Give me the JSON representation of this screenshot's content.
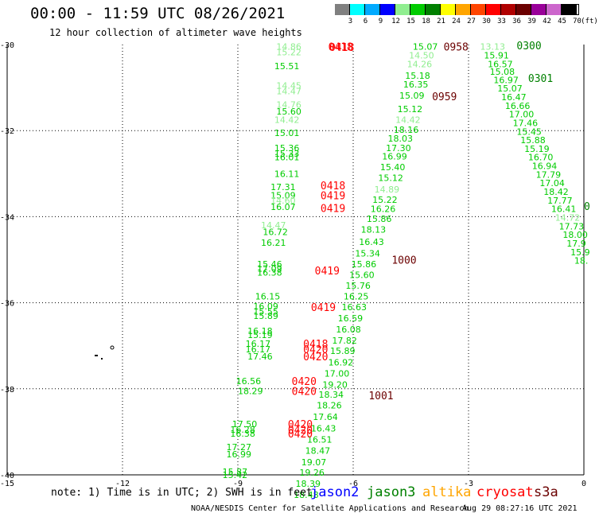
{
  "header": {
    "title": "00:00 - 11:59 UTC 08/26/2021",
    "subtitle": "12 hour collection of altimeter wave heights"
  },
  "color_scale": {
    "unit_label": "(ft)",
    "bins": [
      {
        "label": "3",
        "color": "#808080"
      },
      {
        "label": "6",
        "color": "#00ffff"
      },
      {
        "label": "9",
        "color": "#00aaff"
      },
      {
        "label": "12",
        "color": "#0000ff"
      },
      {
        "label": "15",
        "color": "#90ee90"
      },
      {
        "label": "18",
        "color": "#00cc00"
      },
      {
        "label": "21",
        "color": "#008000"
      },
      {
        "label": "24",
        "color": "#ffff00"
      },
      {
        "label": "27",
        "color": "#ffa500"
      },
      {
        "label": "30",
        "color": "#ff4500"
      },
      {
        "label": "33",
        "color": "#ff0000"
      },
      {
        "label": "36",
        "color": "#b00000"
      },
      {
        "label": "39",
        "color": "#6b0000"
      },
      {
        "label": "42",
        "color": "#990099"
      },
      {
        "label": "45",
        "color": "#cc66cc"
      },
      {
        "label": "70",
        "color": "#000000"
      }
    ]
  },
  "map": {
    "lon_ticks": [
      "-15",
      "-12",
      "-9",
      "-6",
      "-3",
      "0"
    ],
    "lat_ticks": [
      "-30",
      "-32",
      "-34",
      "-36",
      "-38",
      "-40"
    ],
    "lon_range": [
      -15,
      0
    ],
    "lat_range": [
      -40,
      -30
    ],
    "wave_heights": [
      {
        "lon": -8.0,
        "lat": -30.05,
        "v": "14.86",
        "c": "#90ee90"
      },
      {
        "lon": -8.0,
        "lat": -30.18,
        "v": "15.22",
        "c": "#90ee90"
      },
      {
        "lon": -8.05,
        "lat": -30.5,
        "v": "15.51",
        "c": "#00cc00"
      },
      {
        "lon": -8.0,
        "lat": -30.95,
        "v": "14.45",
        "c": "#90ee90"
      },
      {
        "lon": -8.0,
        "lat": -31.08,
        "v": "14.47",
        "c": "#90ee90"
      },
      {
        "lon": -8.0,
        "lat": -31.4,
        "v": "14.76",
        "c": "#90ee90"
      },
      {
        "lon": -8.0,
        "lat": -31.55,
        "v": "15.60",
        "c": "#00cc00"
      },
      {
        "lon": -8.05,
        "lat": -31.75,
        "v": "14.42",
        "c": "#90ee90"
      },
      {
        "lon": -8.05,
        "lat": -32.05,
        "v": "15.01",
        "c": "#00cc00"
      },
      {
        "lon": -8.05,
        "lat": -32.4,
        "v": "15.36",
        "c": "#00cc00"
      },
      {
        "lon": -8.05,
        "lat": -32.53,
        "v": "15.33",
        "c": "#00cc00"
      },
      {
        "lon": -8.05,
        "lat": -32.62,
        "v": "16.01",
        "c": "#00cc00"
      },
      {
        "lon": -8.05,
        "lat": -33.0,
        "v": "16.11",
        "c": "#00cc00"
      },
      {
        "lon": -8.15,
        "lat": -33.31,
        "v": "17.31",
        "c": "#00cc00"
      },
      {
        "lon": -8.15,
        "lat": -33.5,
        "v": "15.09",
        "c": "#00cc00"
      },
      {
        "lon": -8.15,
        "lat": -33.62,
        "v": "14.60",
        "c": "#90ee90"
      },
      {
        "lon": -8.15,
        "lat": -33.77,
        "v": "16.07",
        "c": "#00cc00"
      },
      {
        "lon": -8.4,
        "lat": -34.2,
        "v": "14.47",
        "c": "#90ee90"
      },
      {
        "lon": -8.35,
        "lat": -34.35,
        "v": "16.72",
        "c": "#00cc00"
      },
      {
        "lon": -8.4,
        "lat": -34.6,
        "v": "16.21",
        "c": "#00cc00"
      },
      {
        "lon": -8.5,
        "lat": -35.1,
        "v": "15.46",
        "c": "#00cc00"
      },
      {
        "lon": -8.5,
        "lat": -35.2,
        "v": "17.09",
        "c": "#00cc00"
      },
      {
        "lon": -8.5,
        "lat": -35.3,
        "v": "16.38",
        "c": "#00cc00"
      },
      {
        "lon": -8.55,
        "lat": -35.85,
        "v": "16.15",
        "c": "#00cc00"
      },
      {
        "lon": -8.6,
        "lat": -36.08,
        "v": "16.09",
        "c": "#00cc00"
      },
      {
        "lon": -8.6,
        "lat": -36.2,
        "v": "15.55",
        "c": "#00cc00"
      },
      {
        "lon": -8.6,
        "lat": -36.3,
        "v": "15.89",
        "c": "#00cc00"
      },
      {
        "lon": -8.75,
        "lat": -36.65,
        "v": "16.18",
        "c": "#00cc00"
      },
      {
        "lon": -8.75,
        "lat": -36.75,
        "v": "15.19",
        "c": "#00cc00"
      },
      {
        "lon": -8.8,
        "lat": -36.95,
        "v": "16.17",
        "c": "#00cc00"
      },
      {
        "lon": -8.8,
        "lat": -37.08,
        "v": "16.17",
        "c": "#00cc00"
      },
      {
        "lon": -8.75,
        "lat": -37.25,
        "v": "17.46",
        "c": "#00cc00"
      },
      {
        "lon": -9.05,
        "lat": -37.82,
        "v": "16.56",
        "c": "#00cc00"
      },
      {
        "lon": -9.0,
        "lat": -38.05,
        "v": "18.29",
        "c": "#00cc00"
      },
      {
        "lon": -9.15,
        "lat": -38.82,
        "v": "17.50",
        "c": "#00cc00"
      },
      {
        "lon": -9.2,
        "lat": -38.95,
        "v": "16.28",
        "c": "#00cc00"
      },
      {
        "lon": -9.2,
        "lat": -39.04,
        "v": "16.38",
        "c": "#00cc00"
      },
      {
        "lon": -9.3,
        "lat": -39.35,
        "v": "17.27",
        "c": "#00cc00"
      },
      {
        "lon": -9.3,
        "lat": -39.52,
        "v": "16.99",
        "c": "#00cc00"
      },
      {
        "lon": -9.4,
        "lat": -39.93,
        "v": "15.87",
        "c": "#00cc00"
      },
      {
        "lon": -9.4,
        "lat": -40.0,
        "v": "15.42",
        "c": "#00cc00"
      },
      {
        "lon": -4.45,
        "lat": -30.05,
        "v": "15.07",
        "c": "#00cc00"
      },
      {
        "lon": -4.55,
        "lat": -30.25,
        "v": "14.50",
        "c": "#90ee90"
      },
      {
        "lon": -4.6,
        "lat": -30.45,
        "v": "14.26",
        "c": "#90ee90"
      },
      {
        "lon": -4.65,
        "lat": -30.72,
        "v": "15.18",
        "c": "#00cc00"
      },
      {
        "lon": -4.7,
        "lat": -30.92,
        "v": "16.35",
        "c": "#00cc00"
      },
      {
        "lon": -4.8,
        "lat": -31.18,
        "v": "15.09",
        "c": "#00cc00"
      },
      {
        "lon": -4.85,
        "lat": -31.5,
        "v": "15.12",
        "c": "#00cc00"
      },
      {
        "lon": -4.9,
        "lat": -31.75,
        "v": "14.42",
        "c": "#90ee90"
      },
      {
        "lon": -4.95,
        "lat": -31.98,
        "v": "18.16",
        "c": "#00cc00"
      },
      {
        "lon": -5.1,
        "lat": -32.18,
        "v": "18.03",
        "c": "#00cc00"
      },
      {
        "lon": -5.15,
        "lat": -32.4,
        "v": "17.30",
        "c": "#00cc00"
      },
      {
        "lon": -5.25,
        "lat": -32.6,
        "v": "16.99",
        "c": "#00cc00"
      },
      {
        "lon": -5.3,
        "lat": -32.85,
        "v": "15.40",
        "c": "#00cc00"
      },
      {
        "lon": -5.35,
        "lat": -33.1,
        "v": "15.12",
        "c": "#00cc00"
      },
      {
        "lon": -5.45,
        "lat": -33.36,
        "v": "14.89",
        "c": "#90ee90"
      },
      {
        "lon": -5.5,
        "lat": -33.6,
        "v": "15.22",
        "c": "#00cc00"
      },
      {
        "lon": -5.55,
        "lat": -33.82,
        "v": "16.26",
        "c": "#00cc00"
      },
      {
        "lon": -5.65,
        "lat": -34.05,
        "v": "15.86",
        "c": "#00cc00"
      },
      {
        "lon": -5.8,
        "lat": -34.3,
        "v": "18.13",
        "c": "#00cc00"
      },
      {
        "lon": -5.85,
        "lat": -34.58,
        "v": "16.43",
        "c": "#00cc00"
      },
      {
        "lon": -5.95,
        "lat": -34.85,
        "v": "15.34",
        "c": "#00cc00"
      },
      {
        "lon": -6.05,
        "lat": -35.1,
        "v": "15.86",
        "c": "#00cc00"
      },
      {
        "lon": -6.1,
        "lat": -35.35,
        "v": "15.60",
        "c": "#00cc00"
      },
      {
        "lon": -6.2,
        "lat": -35.6,
        "v": "15.76",
        "c": "#00cc00"
      },
      {
        "lon": -6.25,
        "lat": -35.85,
        "v": "16.25",
        "c": "#00cc00"
      },
      {
        "lon": -6.3,
        "lat": -36.1,
        "v": "16.63",
        "c": "#00cc00"
      },
      {
        "lon": -6.4,
        "lat": -36.36,
        "v": "16.59",
        "c": "#00cc00"
      },
      {
        "lon": -6.45,
        "lat": -36.62,
        "v": "16.08",
        "c": "#00cc00"
      },
      {
        "lon": -6.55,
        "lat": -36.88,
        "v": "17.82",
        "c": "#00cc00"
      },
      {
        "lon": -6.6,
        "lat": -37.12,
        "v": "15.89",
        "c": "#00cc00"
      },
      {
        "lon": -6.65,
        "lat": -37.38,
        "v": "16.92",
        "c": "#00cc00"
      },
      {
        "lon": -6.75,
        "lat": -37.64,
        "v": "17.00",
        "c": "#00cc00"
      },
      {
        "lon": -6.8,
        "lat": -37.9,
        "v": "19.20",
        "c": "#00cc00"
      },
      {
        "lon": -6.9,
        "lat": -38.13,
        "v": "18.34",
        "c": "#00cc00"
      },
      {
        "lon": -6.95,
        "lat": -38.38,
        "v": "18.26",
        "c": "#00cc00"
      },
      {
        "lon": -7.05,
        "lat": -38.65,
        "v": "17.64",
        "c": "#00cc00"
      },
      {
        "lon": -7.1,
        "lat": -38.92,
        "v": "16.43",
        "c": "#00cc00"
      },
      {
        "lon": -7.2,
        "lat": -39.18,
        "v": "16.51",
        "c": "#00cc00"
      },
      {
        "lon": -7.25,
        "lat": -39.44,
        "v": "18.47",
        "c": "#00cc00"
      },
      {
        "lon": -7.35,
        "lat": -39.7,
        "v": "19.07",
        "c": "#00cc00"
      },
      {
        "lon": -7.4,
        "lat": -39.94,
        "v": "19.26",
        "c": "#00cc00"
      },
      {
        "lon": -7.5,
        "lat": -40.2,
        "v": "18.39",
        "c": "#00cc00"
      },
      {
        "lon": -7.55,
        "lat": -40.46,
        "v": "18.48",
        "c": "#00cc00"
      },
      {
        "lon": -2.7,
        "lat": -30.05,
        "v": "13.13",
        "c": "#90ee90"
      },
      {
        "lon": -2.6,
        "lat": -30.25,
        "v": "15.91",
        "c": "#00cc00"
      },
      {
        "lon": -2.5,
        "lat": -30.45,
        "v": "16.57",
        "c": "#00cc00"
      },
      {
        "lon": -2.45,
        "lat": -30.63,
        "v": "15.08",
        "c": "#00cc00"
      },
      {
        "lon": -2.35,
        "lat": -30.82,
        "v": "16.97",
        "c": "#00cc00"
      },
      {
        "lon": -2.25,
        "lat": -31.02,
        "v": "15.07",
        "c": "#00cc00"
      },
      {
        "lon": -2.15,
        "lat": -31.22,
        "v": "16.47",
        "c": "#00cc00"
      },
      {
        "lon": -2.05,
        "lat": -31.42,
        "v": "16.66",
        "c": "#00cc00"
      },
      {
        "lon": -1.95,
        "lat": -31.62,
        "v": "17.00",
        "c": "#00cc00"
      },
      {
        "lon": -1.85,
        "lat": -31.82,
        "v": "17.46",
        "c": "#00cc00"
      },
      {
        "lon": -1.75,
        "lat": -32.02,
        "v": "15.45",
        "c": "#00cc00"
      },
      {
        "lon": -1.65,
        "lat": -32.22,
        "v": "15.88",
        "c": "#00cc00"
      },
      {
        "lon": -1.55,
        "lat": -32.42,
        "v": "15.19",
        "c": "#00cc00"
      },
      {
        "lon": -1.45,
        "lat": -32.62,
        "v": "16.70",
        "c": "#00cc00"
      },
      {
        "lon": -1.35,
        "lat": -32.82,
        "v": "16.94",
        "c": "#00cc00"
      },
      {
        "lon": -1.25,
        "lat": -33.02,
        "v": "17.79",
        "c": "#00cc00"
      },
      {
        "lon": -1.15,
        "lat": -33.22,
        "v": "17.04",
        "c": "#00cc00"
      },
      {
        "lon": -1.05,
        "lat": -33.42,
        "v": "18.42",
        "c": "#00cc00"
      },
      {
        "lon": -0.95,
        "lat": -33.62,
        "v": "17.77",
        "c": "#00cc00"
      },
      {
        "lon": -0.85,
        "lat": -33.82,
        "v": "16.41",
        "c": "#00cc00"
      },
      {
        "lon": -0.75,
        "lat": -34.02,
        "v": "14.72",
        "c": "#90ee90"
      },
      {
        "lon": -0.65,
        "lat": -34.22,
        "v": "17.73",
        "c": "#00cc00"
      },
      {
        "lon": -0.55,
        "lat": -34.42,
        "v": "18.00",
        "c": "#00cc00"
      },
      {
        "lon": -0.45,
        "lat": -34.62,
        "v": "17.9",
        "c": "#00cc00"
      },
      {
        "lon": -0.35,
        "lat": -34.82,
        "v": "15.9",
        "c": "#00cc00"
      },
      {
        "lon": -0.25,
        "lat": -35.02,
        "v": "18.",
        "c": "#00cc00"
      }
    ],
    "time_tags": [
      {
        "lon": -6.65,
        "lat": -30.05,
        "t": "0418",
        "c": "#ff0000"
      },
      {
        "lon": -6.62,
        "lat": -30.06,
        "t": "0418",
        "c": "#ff0000"
      },
      {
        "lon": -6.85,
        "lat": -33.27,
        "t": "0418",
        "c": "#ff0000"
      },
      {
        "lon": -6.85,
        "lat": -33.5,
        "t": "0419",
        "c": "#ff0000"
      },
      {
        "lon": -6.85,
        "lat": -33.8,
        "t": "0419",
        "c": "#ff0000"
      },
      {
        "lon": -7.0,
        "lat": -35.25,
        "t": "0419",
        "c": "#ff0000"
      },
      {
        "lon": -7.1,
        "lat": -36.1,
        "t": "0419",
        "c": "#ff0000"
      },
      {
        "lon": -7.3,
        "lat": -36.95,
        "t": "0418",
        "c": "#ff0000"
      },
      {
        "lon": -7.3,
        "lat": -37.08,
        "t": "0420",
        "c": "#ff0000"
      },
      {
        "lon": -7.3,
        "lat": -37.25,
        "t": "0420",
        "c": "#ff0000"
      },
      {
        "lon": -7.6,
        "lat": -37.82,
        "t": "0420",
        "c": "#ff0000"
      },
      {
        "lon": -7.6,
        "lat": -38.05,
        "t": "0420",
        "c": "#ff0000"
      },
      {
        "lon": -7.7,
        "lat": -38.82,
        "t": "0420",
        "c": "#ff0000"
      },
      {
        "lon": -7.7,
        "lat": -38.95,
        "t": "0420",
        "c": "#ff0000"
      },
      {
        "lon": -7.7,
        "lat": -39.04,
        "t": "0420",
        "c": "#ff0000"
      },
      {
        "lon": -3.65,
        "lat": -30.05,
        "t": "0958",
        "c": "#6b0000"
      },
      {
        "lon": -3.95,
        "lat": -31.2,
        "t": "0959",
        "c": "#6b0000"
      },
      {
        "lon": -5.0,
        "lat": -35.0,
        "t": "1000",
        "c": "#6b0000"
      },
      {
        "lon": -5.6,
        "lat": -38.15,
        "t": "1001",
        "c": "#6b0000"
      },
      {
        "lon": -1.75,
        "lat": -30.02,
        "t": "0300",
        "c": "#008000"
      },
      {
        "lon": -1.45,
        "lat": -30.78,
        "t": "0301",
        "c": "#008000"
      },
      {
        "lon": 0.0,
        "lat": -33.75,
        "t": "0",
        "c": "#008000"
      }
    ]
  },
  "footer": {
    "note": "note: 1) Time is in UTC; 2) SWH is in feet",
    "satellites": [
      {
        "name": "jason2",
        "color": "#0000ff"
      },
      {
        "name": "jason3",
        "color": "#008000"
      },
      {
        "name": "altika",
        "color": "#ffa500"
      },
      {
        "name": "cryosat",
        "color": "#ff0000"
      },
      {
        "name": "s3a",
        "color": "#6b0000"
      }
    ],
    "credit": "NOAA/NESDIS Center for Satellite Applications and Research",
    "timestamp": "Aug 29 08:27:16 UTC 2021"
  }
}
